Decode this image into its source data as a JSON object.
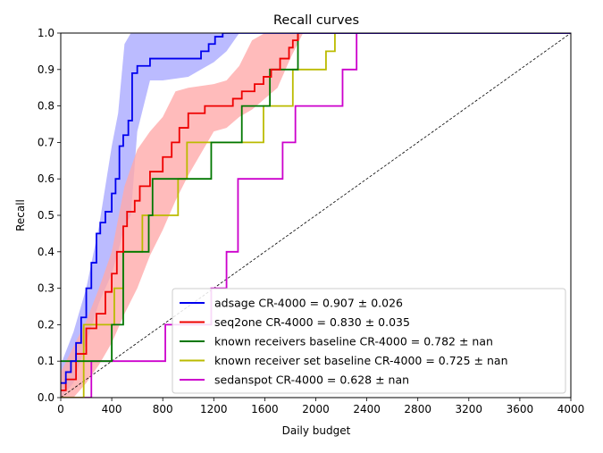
{
  "chart_data": {
    "type": "line",
    "title": "Recall curves",
    "xlabel": "Daily budget",
    "ylabel": "Recall",
    "xlim": [
      0,
      4000
    ],
    "ylim": [
      0,
      1.0
    ],
    "xticks": [
      "0",
      "400",
      "800",
      "1200",
      "1600",
      "2000",
      "2400",
      "2800",
      "3200",
      "3600",
      "4000"
    ],
    "yticks": [
      "0.0",
      "0.1",
      "0.2",
      "0.3",
      "0.4",
      "0.5",
      "0.6",
      "0.7",
      "0.8",
      "0.9",
      "1.0"
    ],
    "grid": false,
    "legend_position": "lower-right",
    "diagonal_reference": {
      "from": [
        0,
        0
      ],
      "to": [
        4000,
        1.0
      ],
      "style": "dashed",
      "color": "#000000"
    },
    "series": [
      {
        "name": "adsage CR-4000 = 0.907 ± 0.026",
        "color": "#0000ee",
        "band_color": "#aaaaff",
        "x": [
          0,
          40,
          40,
          80,
          80,
          120,
          120,
          160,
          160,
          200,
          200,
          240,
          240,
          280,
          280,
          310,
          310,
          350,
          350,
          400,
          400,
          430,
          430,
          460,
          460,
          490,
          490,
          530,
          530,
          560,
          560,
          600,
          600,
          700,
          700,
          1100,
          1100,
          1160,
          1160,
          1210,
          1210,
          1270,
          1270,
          1330,
          1330,
          1370,
          1370,
          4000
        ],
        "y": [
          0.04,
          0.04,
          0.07,
          0.07,
          0.1,
          0.1,
          0.15,
          0.15,
          0.22,
          0.22,
          0.3,
          0.3,
          0.37,
          0.37,
          0.45,
          0.45,
          0.48,
          0.48,
          0.51,
          0.51,
          0.56,
          0.56,
          0.6,
          0.6,
          0.69,
          0.69,
          0.72,
          0.72,
          0.76,
          0.76,
          0.89,
          0.89,
          0.91,
          0.91,
          0.93,
          0.93,
          0.95,
          0.95,
          0.97,
          0.97,
          0.99,
          0.99,
          1.0,
          1.0,
          1.0,
          1.0,
          1.0,
          1.0
        ],
        "band_x": [
          0,
          100,
          200,
          300,
          400,
          450,
          500,
          550,
          600,
          700,
          800,
          1000,
          1100,
          1200,
          1300,
          1400
        ],
        "band_low": [
          0.0,
          0.04,
          0.15,
          0.26,
          0.34,
          0.4,
          0.47,
          0.5,
          0.73,
          0.87,
          0.87,
          0.88,
          0.9,
          0.92,
          0.95,
          1.0
        ],
        "band_high": [
          0.09,
          0.18,
          0.3,
          0.47,
          0.69,
          0.78,
          0.97,
          1.0,
          1.0,
          1.0,
          1.0,
          1.0,
          1.0,
          1.0,
          1.0,
          1.0
        ]
      },
      {
        "name": "seq2one CR-4000 = 0.830 ± 0.035",
        "color": "#ee0000",
        "band_color": "#ffaaaa",
        "x": [
          0,
          40,
          40,
          120,
          120,
          200,
          200,
          280,
          280,
          350,
          350,
          400,
          400,
          440,
          440,
          490,
          490,
          520,
          520,
          580,
          580,
          620,
          620,
          700,
          700,
          800,
          800,
          870,
          870,
          930,
          930,
          1000,
          1000,
          1130,
          1130,
          1350,
          1350,
          1420,
          1420,
          1520,
          1520,
          1590,
          1590,
          1650,
          1650,
          1720,
          1720,
          1790,
          1790,
          1820,
          1820,
          1860,
          1860,
          1900,
          1900,
          4000
        ],
        "y": [
          0.02,
          0.02,
          0.05,
          0.05,
          0.12,
          0.12,
          0.19,
          0.19,
          0.23,
          0.23,
          0.29,
          0.29,
          0.34,
          0.34,
          0.4,
          0.4,
          0.47,
          0.47,
          0.51,
          0.51,
          0.54,
          0.54,
          0.58,
          0.58,
          0.62,
          0.62,
          0.66,
          0.66,
          0.7,
          0.7,
          0.74,
          0.74,
          0.78,
          0.78,
          0.8,
          0.8,
          0.82,
          0.82,
          0.84,
          0.84,
          0.86,
          0.86,
          0.88,
          0.88,
          0.9,
          0.9,
          0.93,
          0.93,
          0.96,
          0.96,
          0.98,
          0.98,
          1.0,
          1.0,
          1.0,
          1.0
        ],
        "band_x": [
          0,
          100,
          200,
          300,
          400,
          500,
          600,
          700,
          800,
          900,
          1000,
          1200,
          1300,
          1400,
          1500,
          1600,
          1700,
          1800,
          1900
        ],
        "band_low": [
          0.0,
          0.0,
          0.04,
          0.09,
          0.15,
          0.23,
          0.3,
          0.39,
          0.46,
          0.54,
          0.61,
          0.73,
          0.74,
          0.77,
          0.79,
          0.82,
          0.85,
          0.93,
          1.0
        ],
        "band_high": [
          0.07,
          0.14,
          0.21,
          0.3,
          0.4,
          0.58,
          0.68,
          0.73,
          0.77,
          0.84,
          0.85,
          0.86,
          0.87,
          0.91,
          0.98,
          1.0,
          1.0,
          1.0,
          1.0
        ]
      },
      {
        "name": "known receivers baseline CR-4000 = 0.782 ± nan",
        "color": "#007700",
        "x": [
          0,
          400,
          400,
          490,
          490,
          690,
          690,
          720,
          720,
          1180,
          1180,
          1420,
          1420,
          1640,
          1640,
          1860,
          1860,
          1950,
          1950,
          4000
        ],
        "y": [
          0.1,
          0.1,
          0.2,
          0.2,
          0.4,
          0.4,
          0.5,
          0.5,
          0.6,
          0.6,
          0.7,
          0.7,
          0.8,
          0.8,
          0.9,
          0.9,
          1.0,
          1.0,
          1.0,
          1.0
        ],
        "band_x": [],
        "band_low": [],
        "band_high": []
      },
      {
        "name": "known receiver set baseline CR-4000 = 0.725 ± nan",
        "color": "#bbbb00",
        "x": [
          0,
          180,
          180,
          420,
          420,
          490,
          490,
          640,
          640,
          920,
          920,
          990,
          990,
          1590,
          1590,
          1820,
          1820,
          2080,
          2080,
          2150,
          2150,
          2300,
          2300,
          4000
        ],
        "y": [
          0.0,
          0.0,
          0.2,
          0.2,
          0.3,
          0.3,
          0.4,
          0.4,
          0.5,
          0.5,
          0.6,
          0.6,
          0.7,
          0.7,
          0.8,
          0.8,
          0.9,
          0.9,
          0.95,
          0.95,
          1.0,
          1.0,
          1.0,
          1.0
        ],
        "band_x": [],
        "band_low": [],
        "band_high": []
      },
      {
        "name": "sedanspot CR-4000 = 0.628 ± nan",
        "color": "#cc00cc",
        "x": [
          0,
          240,
          240,
          820,
          820,
          1180,
          1180,
          1300,
          1300,
          1390,
          1390,
          1740,
          1740,
          1840,
          1840,
          2210,
          2210,
          2320,
          2320,
          2440,
          2440,
          4000
        ],
        "y": [
          0.0,
          0.0,
          0.1,
          0.1,
          0.2,
          0.2,
          0.3,
          0.3,
          0.4,
          0.4,
          0.6,
          0.6,
          0.7,
          0.7,
          0.8,
          0.8,
          0.9,
          0.9,
          1.0,
          1.0,
          1.0,
          1.0
        ],
        "band_x": [],
        "band_low": [],
        "band_high": []
      }
    ]
  }
}
